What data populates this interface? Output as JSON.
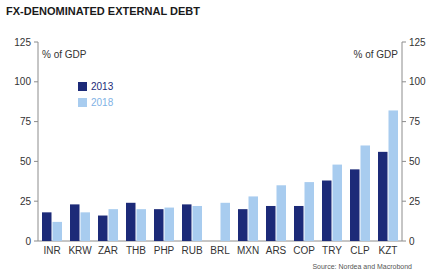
{
  "chart_data": {
    "type": "bar",
    "title": "FX-DENOMINATED EXTERNAL DEBT",
    "y_label": "% of GDP",
    "y2_label": "% of GDP",
    "source": "Source: Nordea and Macrobond",
    "categories": [
      "INR",
      "KRW",
      "ZAR",
      "THB",
      "PHP",
      "RUB",
      "BRL",
      "MXN",
      "ARS",
      "COP",
      "TRY",
      "CLP",
      "KZT"
    ],
    "series": [
      {
        "name": "2013",
        "color": "#1c2a78",
        "values": [
          18,
          23,
          16,
          24,
          20,
          23,
          null,
          20,
          22,
          22,
          38,
          45,
          56
        ]
      },
      {
        "name": "2018",
        "color": "#a8ccef",
        "values": [
          12,
          18,
          20,
          20,
          21,
          22,
          24,
          28,
          35,
          37,
          48,
          60,
          82
        ]
      }
    ],
    "ylim": [
      0,
      125
    ],
    "yticks": [
      0,
      25,
      50,
      75,
      100,
      125
    ],
    "y2lim": [
      0,
      125
    ],
    "y2ticks": [
      0,
      25,
      50,
      75,
      100,
      125
    ],
    "grid": false,
    "legend": "top-left"
  }
}
